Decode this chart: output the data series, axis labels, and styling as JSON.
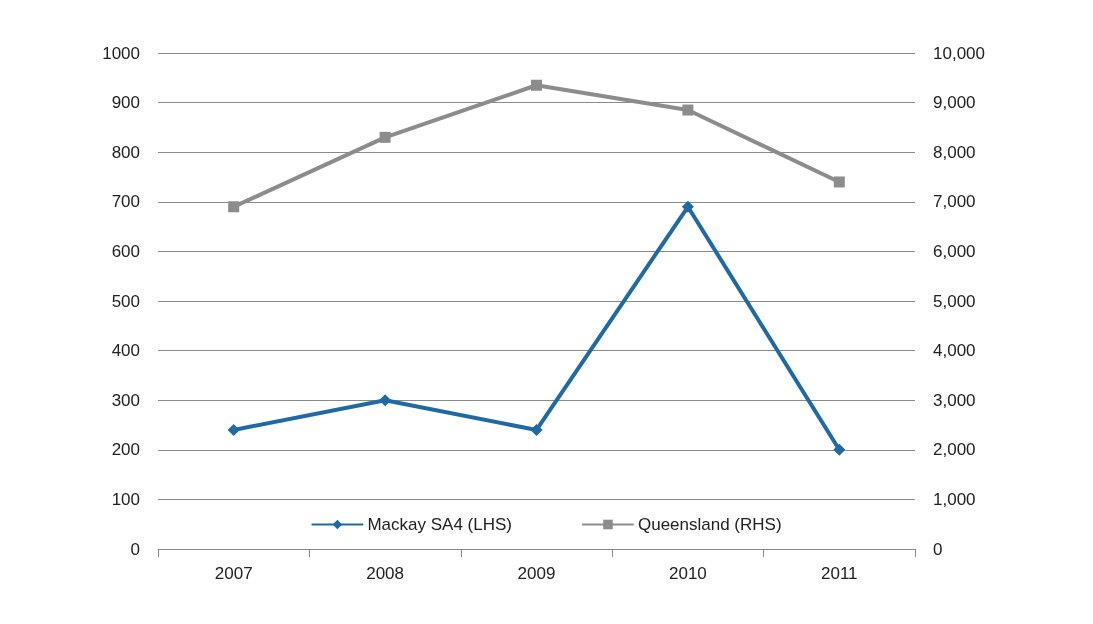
{
  "chart_data": {
    "type": "line",
    "categories": [
      "2007",
      "2008",
      "2009",
      "2010",
      "2011"
    ],
    "series": [
      {
        "name": "Mackay SA4 (LHS)",
        "color": "#1f6aa5",
        "values": [
          240,
          300,
          240,
          690,
          200
        ],
        "marker": "diamond"
      },
      {
        "name": "Queensland (RHS)",
        "color": "#8c8c8c",
        "values": [
          6900,
          8300,
          9350,
          8850,
          7400
        ],
        "axis": "y2",
        "marker": "square"
      }
    ],
    "ylim": [
      0,
      1000
    ],
    "yticks": [
      0,
      100,
      200,
      300,
      400,
      500,
      600,
      700,
      800,
      900,
      1000
    ],
    "y2lim": [
      0,
      10000
    ],
    "y2ticks": [
      {
        "value": 0,
        "label": "0"
      },
      {
        "value": 1000,
        "label": "1,000"
      },
      {
        "value": 2000,
        "label": "2,000"
      },
      {
        "value": 3000,
        "label": "3,000"
      },
      {
        "value": 4000,
        "label": "4,000"
      },
      {
        "value": 5000,
        "label": "5,000"
      },
      {
        "value": 6000,
        "label": "6,000"
      },
      {
        "value": 7000,
        "label": "7,000"
      },
      {
        "value": 8000,
        "label": "8,000"
      },
      {
        "value": 9000,
        "label": "9,000"
      },
      {
        "value": 10000,
        "label": "10,000"
      }
    ],
    "grid": "y",
    "legend": "bottom",
    "line_style": "solid"
  }
}
